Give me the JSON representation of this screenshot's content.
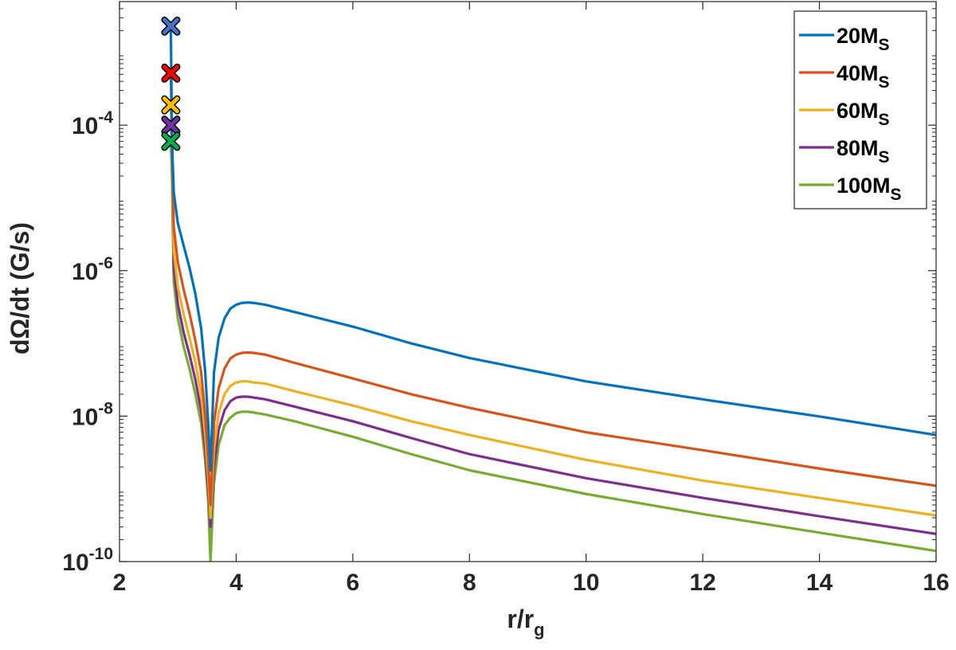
{
  "chart_data": {
    "type": "line",
    "title": "",
    "xlabel": "r/r",
    "xlabel_sub": "g",
    "ylabel": "dΩ/dt (G/s)",
    "x_scale": "linear",
    "y_scale": "log",
    "xlim": [
      2,
      16
    ],
    "ylim": [
      1e-10,
      0.005
    ],
    "x_ticks": [
      2,
      4,
      6,
      8,
      10,
      12,
      14,
      16
    ],
    "x_tick_labels": [
      "2",
      "4",
      "6",
      "8",
      "10",
      "12",
      "14",
      "16"
    ],
    "y_ticks": [
      1e-10,
      1e-08,
      1e-06,
      0.0001
    ],
    "y_tick_labels": [
      {
        "base": "10",
        "exp": "-10"
      },
      {
        "base": "10",
        "exp": "-8"
      },
      {
        "base": "10",
        "exp": "-6"
      },
      {
        "base": "10",
        "exp": "-4"
      }
    ],
    "grid": false,
    "legend_position": "top-right",
    "series": [
      {
        "name": "20M",
        "name_sub": "S",
        "color": "#0072BD",
        "marker_color": "#4472C4",
        "x": [
          2.88,
          2.9,
          2.93,
          3.0,
          3.1,
          3.2,
          3.3,
          3.4,
          3.47,
          3.52,
          3.56,
          3.62,
          3.7,
          3.8,
          3.9,
          4.0,
          4.1,
          4.2,
          4.3,
          4.5,
          5.0,
          6.0,
          7.0,
          8.0,
          10.0,
          12.0,
          14.0,
          16.0
        ],
        "y": [
          0.0023,
          6e-05,
          1.2e-05,
          4.5e-06,
          2.2e-06,
          1.1e-06,
          4.8e-07,
          1.6e-07,
          4e-08,
          8e-09,
          1.8e-09,
          4e-08,
          1.2e-07,
          2.2e-07,
          3e-07,
          3.4e-07,
          3.6e-07,
          3.65e-07,
          3.6e-07,
          3.4e-07,
          2.7e-07,
          1.7e-07,
          1e-07,
          6.3e-08,
          3e-08,
          1.7e-08,
          9.9e-09,
          5.5e-09
        ]
      },
      {
        "name": "40M",
        "name_sub": "S",
        "color": "#D95319",
        "marker_color": "#FF0000",
        "x": [
          2.88,
          2.9,
          2.93,
          3.0,
          3.1,
          3.2,
          3.3,
          3.4,
          3.47,
          3.52,
          3.56,
          3.62,
          3.7,
          3.8,
          3.9,
          4.0,
          4.1,
          4.2,
          4.3,
          4.5,
          5.0,
          6.0,
          7.0,
          8.0,
          10.0,
          12.0,
          14.0,
          16.0
        ],
        "y": [
          0.00052,
          6e-05,
          4e-06,
          1.3e-06,
          5.5e-07,
          2.6e-07,
          1.1e-07,
          4e-08,
          1e-08,
          2.5e-09,
          6e-10,
          8e-09,
          2.4e-08,
          4.5e-08,
          6.2e-08,
          7e-08,
          7.4e-08,
          7.5e-08,
          7.4e-08,
          7e-08,
          5.4e-08,
          3.3e-08,
          2e-08,
          1.3e-08,
          6e-09,
          3.4e-09,
          1.9e-09,
          1.1e-09
        ]
      },
      {
        "name": "60M",
        "name_sub": "S",
        "color": "#EDB120",
        "marker_color": "#FFC000",
        "x": [
          2.88,
          2.9,
          2.93,
          3.0,
          3.1,
          3.2,
          3.3,
          3.4,
          3.47,
          3.52,
          3.56,
          3.62,
          3.7,
          3.8,
          3.9,
          4.0,
          4.1,
          4.2,
          4.3,
          4.5,
          5.0,
          6.0,
          7.0,
          8.0,
          10.0,
          12.0,
          14.0,
          16.0
        ],
        "y": [
          0.00019,
          6e-05,
          1.9e-06,
          6e-07,
          2.5e-07,
          1.2e-07,
          5.5e-08,
          2e-08,
          5.5e-09,
          1.5e-09,
          4e-10,
          3.5e-09,
          1.1e-08,
          2e-08,
          2.6e-08,
          2.9e-08,
          3e-08,
          3e-08,
          2.9e-08,
          2.8e-08,
          2.2e-08,
          1.4e-08,
          8.5e-09,
          5.5e-09,
          2.5e-09,
          1.3e-09,
          7.5e-10,
          4.3e-10
        ]
      },
      {
        "name": "80M",
        "name_sub": "S",
        "color": "#7E2F8E",
        "marker_color": "#7030A0",
        "x": [
          2.88,
          2.9,
          2.93,
          3.0,
          3.1,
          3.2,
          3.3,
          3.4,
          3.47,
          3.52,
          3.56,
          3.62,
          3.7,
          3.8,
          3.9,
          4.0,
          4.1,
          4.2,
          4.3,
          4.5,
          5.0,
          6.0,
          7.0,
          8.0,
          10.0,
          12.0,
          14.0,
          16.0
        ],
        "y": [
          0.0001,
          6e-05,
          1.1e-06,
          3.5e-07,
          1.4e-07,
          7e-08,
          3.2e-08,
          1.2e-08,
          3.5e-09,
          1e-09,
          3e-10,
          2e-09,
          6.5e-09,
          1.2e-08,
          1.6e-08,
          1.8e-08,
          1.85e-08,
          1.85e-08,
          1.8e-08,
          1.7e-08,
          1.35e-08,
          8.5e-09,
          5e-09,
          3e-09,
          1.4e-09,
          7.5e-10,
          4.2e-10,
          2.4e-10
        ]
      },
      {
        "name": "100M",
        "name_sub": "S",
        "color": "#77AC30",
        "marker_color": "#00B050",
        "x": [
          2.88,
          2.9,
          2.93,
          3.0,
          3.1,
          3.2,
          3.3,
          3.4,
          3.47,
          3.52,
          3.56,
          3.62,
          3.7,
          3.8,
          3.9,
          4.0,
          4.1,
          4.2,
          4.3,
          4.5,
          5.0,
          6.0,
          7.0,
          8.0,
          10.0,
          12.0,
          14.0,
          16.0
        ],
        "y": [
          6e-05,
          2e-05,
          7e-07,
          2.2e-07,
          9e-08,
          4.5e-08,
          2e-08,
          8e-09,
          2.4e-09,
          7e-10,
          1e-10,
          1.2e-09,
          4e-09,
          7.5e-09,
          9.5e-09,
          1.1e-08,
          1.15e-08,
          1.15e-08,
          1.12e-08,
          1.05e-08,
          8.5e-09,
          5.2e-09,
          3e-09,
          1.8e-09,
          8.5e-10,
          4.5e-10,
          2.5e-10,
          1.4e-10
        ]
      }
    ],
    "markers": [
      {
        "series": "20M",
        "x": 2.88,
        "y": 0.0023,
        "shape": "x"
      },
      {
        "series": "40M",
        "x": 2.88,
        "y": 0.00052,
        "shape": "x"
      },
      {
        "series": "60M",
        "x": 2.88,
        "y": 0.00019,
        "shape": "x"
      },
      {
        "series": "80M",
        "x": 2.88,
        "y": 0.0001,
        "shape": "x"
      },
      {
        "series": "100M",
        "x": 2.88,
        "y": 6e-05,
        "shape": "x"
      }
    ]
  }
}
